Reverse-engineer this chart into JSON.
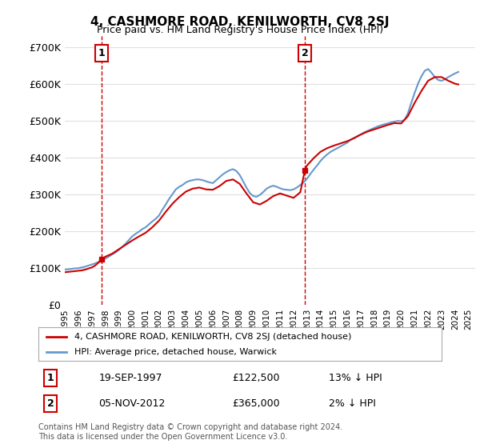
{
  "title": "4, CASHMORE ROAD, KENILWORTH, CV8 2SJ",
  "subtitle": "Price paid vs. HM Land Registry's House Price Index (HPI)",
  "ylabel_ticks": [
    "£0",
    "£100K",
    "£200K",
    "£300K",
    "£400K",
    "£500K",
    "£600K",
    "£700K"
  ],
  "ytick_values": [
    0,
    100000,
    200000,
    300000,
    400000,
    500000,
    600000,
    700000
  ],
  "ylim": [
    0,
    730000
  ],
  "xlim_start": 1995.0,
  "xlim_end": 2025.5,
  "background_color": "#ffffff",
  "grid_color": "#e0e0e0",
  "red_line_color": "#cc0000",
  "blue_line_color": "#6699cc",
  "sale1_date": 1997.72,
  "sale1_price": 122500,
  "sale1_label": "1",
  "sale2_date": 2012.84,
  "sale2_price": 365000,
  "sale2_label": "2",
  "legend_red": "4, CASHMORE ROAD, KENILWORTH, CV8 2SJ (detached house)",
  "legend_blue": "HPI: Average price, detached house, Warwick",
  "table_row1": [
    "1",
    "19-SEP-1997",
    "£122,500",
    "13% ↓ HPI"
  ],
  "table_row2": [
    "2",
    "05-NOV-2012",
    "£365,000",
    "2% ↓ HPI"
  ],
  "footer": "Contains HM Land Registry data © Crown copyright and database right 2024.\nThis data is licensed under the Open Government Licence v3.0.",
  "hpi_years": [
    1995.0,
    1995.25,
    1995.5,
    1995.75,
    1996.0,
    1996.25,
    1996.5,
    1996.75,
    1997.0,
    1997.25,
    1997.5,
    1997.75,
    1998.0,
    1998.25,
    1998.5,
    1998.75,
    1999.0,
    1999.25,
    1999.5,
    1999.75,
    2000.0,
    2000.25,
    2000.5,
    2000.75,
    2001.0,
    2001.25,
    2001.5,
    2001.75,
    2002.0,
    2002.25,
    2002.5,
    2002.75,
    2003.0,
    2003.25,
    2003.5,
    2003.75,
    2004.0,
    2004.25,
    2004.5,
    2004.75,
    2005.0,
    2005.25,
    2005.5,
    2005.75,
    2006.0,
    2006.25,
    2006.5,
    2006.75,
    2007.0,
    2007.25,
    2007.5,
    2007.75,
    2008.0,
    2008.25,
    2008.5,
    2008.75,
    2009.0,
    2009.25,
    2009.5,
    2009.75,
    2010.0,
    2010.25,
    2010.5,
    2010.75,
    2011.0,
    2011.25,
    2011.5,
    2011.75,
    2012.0,
    2012.25,
    2012.5,
    2012.75,
    2013.0,
    2013.25,
    2013.5,
    2013.75,
    2014.0,
    2014.25,
    2014.5,
    2014.75,
    2015.0,
    2015.25,
    2015.5,
    2015.75,
    2016.0,
    2016.25,
    2016.5,
    2016.75,
    2017.0,
    2017.25,
    2017.5,
    2017.75,
    2018.0,
    2018.25,
    2018.5,
    2018.75,
    2019.0,
    2019.25,
    2019.5,
    2019.75,
    2020.0,
    2020.25,
    2020.5,
    2020.75,
    2021.0,
    2021.25,
    2021.5,
    2021.75,
    2022.0,
    2022.25,
    2022.5,
    2022.75,
    2023.0,
    2023.25,
    2023.5,
    2023.75,
    2024.0,
    2024.25
  ],
  "hpi_values": [
    95000,
    96000,
    97000,
    98500,
    99000,
    101000,
    103000,
    106000,
    109000,
    112000,
    116000,
    120000,
    125000,
    130000,
    136000,
    141000,
    148000,
    156000,
    165000,
    175000,
    185000,
    192000,
    198000,
    205000,
    210000,
    218000,
    226000,
    233000,
    242000,
    258000,
    272000,
    287000,
    300000,
    313000,
    320000,
    325000,
    332000,
    336000,
    338000,
    340000,
    340000,
    338000,
    335000,
    332000,
    330000,
    338000,
    346000,
    354000,
    360000,
    365000,
    368000,
    363000,
    352000,
    335000,
    318000,
    303000,
    295000,
    293000,
    298000,
    306000,
    315000,
    320000,
    323000,
    320000,
    316000,
    313000,
    312000,
    311000,
    313000,
    318000,
    325000,
    332000,
    342000,
    355000,
    367000,
    378000,
    390000,
    400000,
    408000,
    415000,
    420000,
    425000,
    430000,
    435000,
    440000,
    448000,
    453000,
    458000,
    462000,
    468000,
    472000,
    476000,
    480000,
    484000,
    487000,
    490000,
    492000,
    495000,
    497000,
    499000,
    498000,
    502000,
    520000,
    548000,
    575000,
    600000,
    620000,
    635000,
    640000,
    630000,
    618000,
    610000,
    608000,
    612000,
    618000,
    623000,
    628000,
    632000
  ],
  "red_years": [
    1995.0,
    1995.25,
    1995.5,
    1995.75,
    1996.0,
    1996.25,
    1996.5,
    1996.75,
    1997.0,
    1997.25,
    1997.5,
    1997.72,
    1998.0,
    1998.5,
    1999.0,
    1999.5,
    2000.0,
    2000.5,
    2001.0,
    2001.5,
    2002.0,
    2002.5,
    2003.0,
    2003.5,
    2004.0,
    2004.5,
    2005.0,
    2005.5,
    2006.0,
    2006.5,
    2007.0,
    2007.5,
    2008.0,
    2008.5,
    2009.0,
    2009.5,
    2010.0,
    2010.5,
    2011.0,
    2011.5,
    2012.0,
    2012.5,
    2012.84,
    2013.0,
    2013.5,
    2014.0,
    2014.5,
    2015.0,
    2015.5,
    2016.0,
    2016.5,
    2017.0,
    2017.5,
    2018.0,
    2018.5,
    2019.0,
    2019.5,
    2020.0,
    2020.5,
    2021.0,
    2021.5,
    2022.0,
    2022.5,
    2023.0,
    2023.5,
    2024.0,
    2024.25
  ],
  "red_values": [
    88000,
    89000,
    90000,
    91000,
    92000,
    93000,
    95000,
    98000,
    101000,
    106000,
    114000,
    122500,
    130000,
    138000,
    150000,
    162000,
    174000,
    185000,
    195000,
    210000,
    228000,
    252000,
    274000,
    292000,
    307000,
    315000,
    318000,
    313000,
    312000,
    322000,
    336000,
    340000,
    328000,
    302000,
    278000,
    272000,
    282000,
    295000,
    302000,
    296000,
    290000,
    305000,
    365000,
    378000,
    398000,
    415000,
    425000,
    432000,
    438000,
    444000,
    452000,
    462000,
    470000,
    476000,
    482000,
    488000,
    493000,
    492000,
    512000,
    548000,
    580000,
    608000,
    618000,
    618000,
    608000,
    600000,
    598000
  ]
}
